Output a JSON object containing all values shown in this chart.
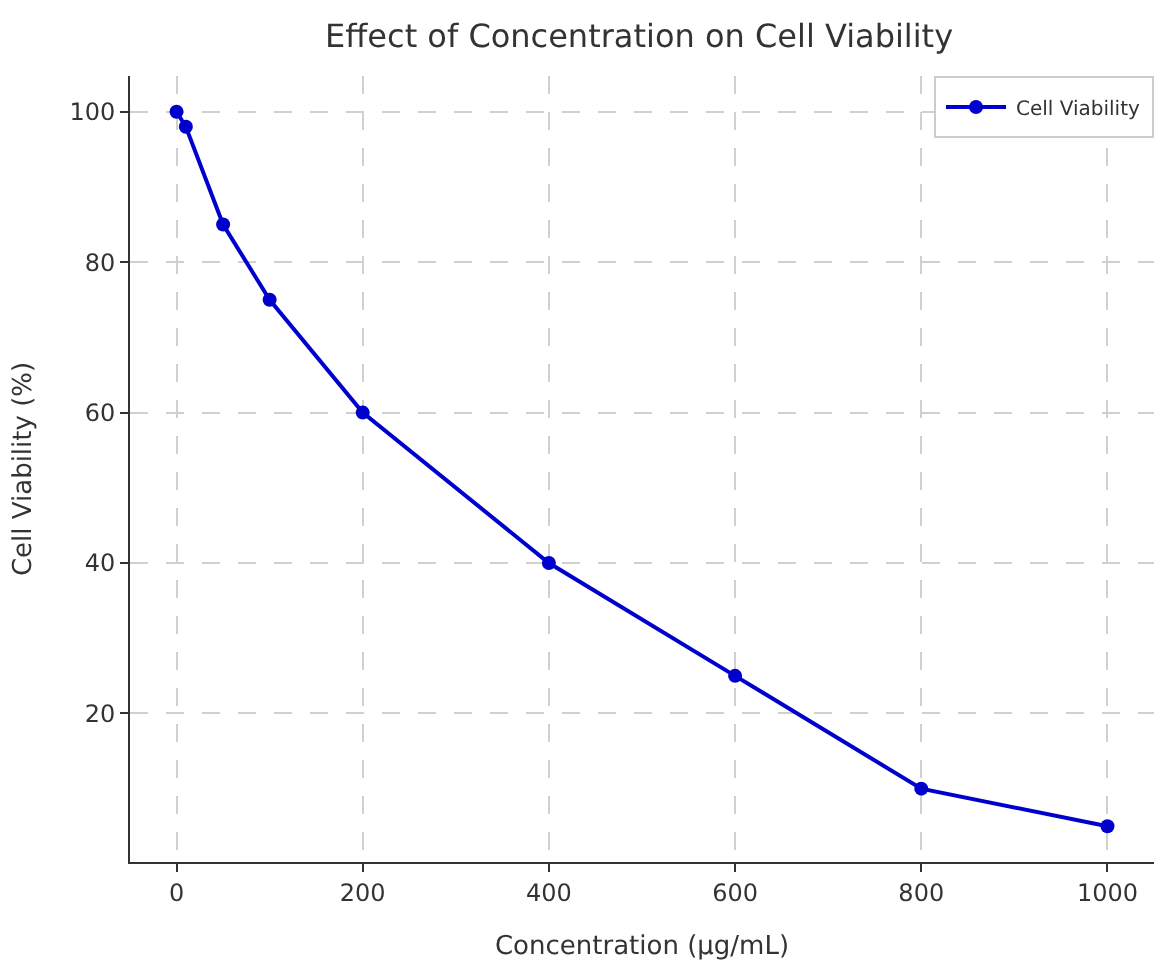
{
  "chart_data": {
    "type": "line",
    "title": "Effect of Concentration on Cell Viability",
    "xlabel": "Concentration (µg/mL)",
    "ylabel": "Cell Viability (%)",
    "x": [
      0,
      10,
      50,
      100,
      200,
      400,
      600,
      800,
      1000
    ],
    "series": [
      {
        "name": "Cell Viability",
        "color": "#0000cc",
        "values": [
          100,
          98,
          85,
          75,
          60,
          40,
          25,
          10,
          5
        ]
      }
    ],
    "xlim": [
      -50,
      1050
    ],
    "xticks": [
      0,
      200,
      400,
      600,
      800,
      1000
    ],
    "ylim": [
      0.25,
      104.75
    ],
    "yticks": [
      20,
      40,
      60,
      80,
      100
    ],
    "grid": true,
    "legend": "top right",
    "marker": "circle",
    "line_style": "solid"
  }
}
